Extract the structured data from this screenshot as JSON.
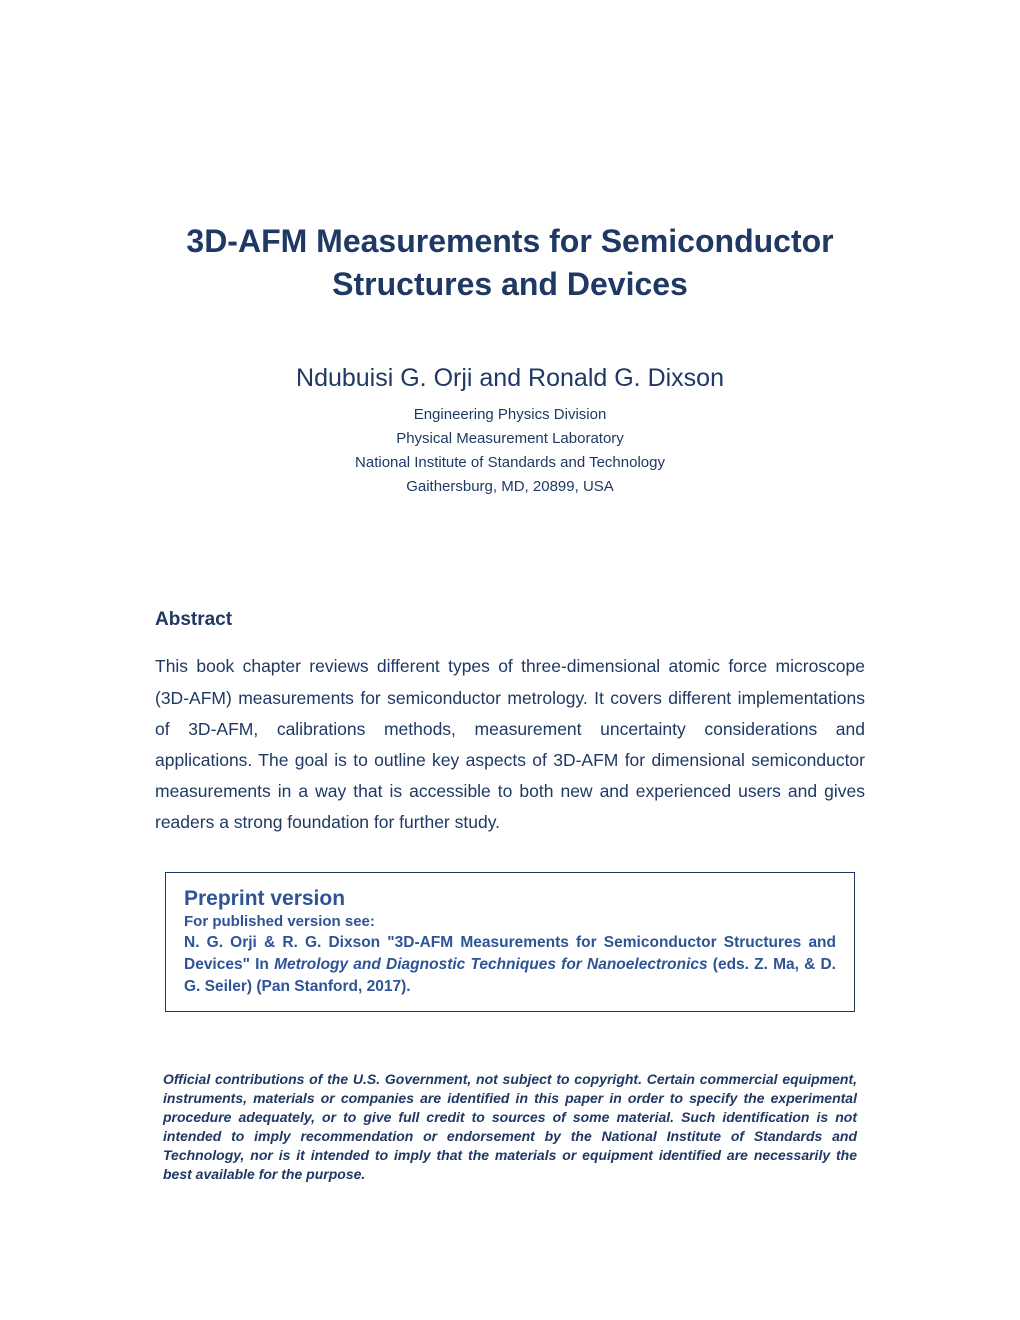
{
  "colors": {
    "text_primary": "#1f3864",
    "link_blue": "#2e5496",
    "background": "#ffffff",
    "box_border": "#1f3864"
  },
  "typography": {
    "title_fontsize": 32,
    "authors_fontsize": 25,
    "affil_fontsize": 15,
    "heading_fontsize": 19,
    "body_fontsize": 17.5,
    "preprint_heading_fontsize": 21,
    "preprint_body_fontsize": 15.5,
    "disclaimer_fontsize": 14,
    "font_family": "Arial"
  },
  "title": "3D-AFM Measurements for Semiconductor Structures and Devices",
  "authors": "Ndubuisi G. Orji and Ronald G. Dixson",
  "affiliation": {
    "line1": "Engineering Physics Division",
    "line2": "Physical Measurement Laboratory",
    "line3": "National Institute of Standards and Technology",
    "line4": "Gaithersburg, MD, 20899, USA"
  },
  "abstract": {
    "heading": "Abstract",
    "body": "This book chapter reviews different types of three-dimensional atomic force microscope (3D-AFM) measurements for semiconductor metrology. It covers different implementations of 3D-AFM, calibrations methods, measurement uncertainty considerations and applications. The goal is to outline key aspects of 3D-AFM for dimensional semiconductor measurements in a way that is accessible to both new and experienced users and gives readers a strong foundation for further study."
  },
  "preprint": {
    "heading": "Preprint version",
    "sub": "For published version see:",
    "cite_plain1": "N. G. Orji & R. G. Dixson \"3D-AFM Measurements for Semiconductor Structures and Devices\" In ",
    "cite_ital": "Metrology and Diagnostic Techniques for Nanoelectronics ",
    "cite_plain2": "(eds. Z. Ma, & D. G. Seiler) (Pan Stanford, 2017)."
  },
  "disclaimer": "Official contributions of the U.S. Government, not subject to copyright. Certain commercial equipment, instruments, materials or companies are identified in this paper in order to specify the experimental procedure adequately, or to give full credit to sources of some material. Such identification is not intended to imply recommendation or endorsement by the National Institute of Standards and Technology, nor is it intended to imply that the materials or equipment identified are necessarily the best available for the purpose."
}
